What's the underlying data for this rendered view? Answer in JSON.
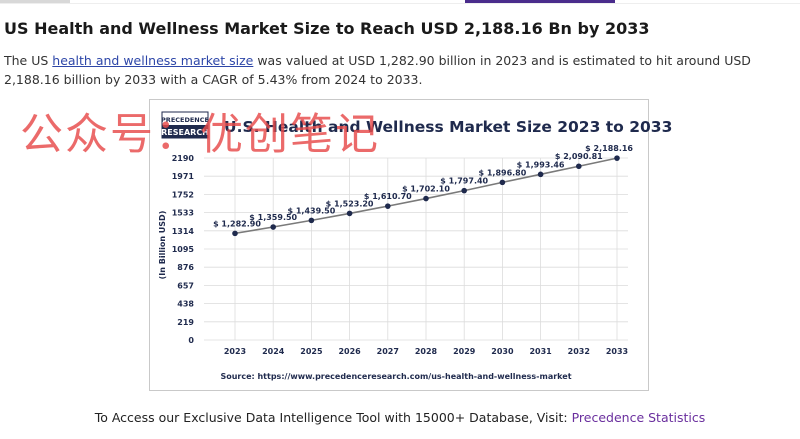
{
  "article": {
    "title": "US Health and Wellness Market Size to Reach USD 2,188.16 Bn by 2033",
    "para_prefix": "The US ",
    "para_link": "health and wellness market size",
    "para_suffix": " was valued at USD 1,282.90 billion in 2023 and is estimated to hit around USD 2,188.16 billion by 2033 with a CAGR of 5.43% from 2024 to 2033."
  },
  "watermark": {
    "text": "公众号：优创笔记"
  },
  "logo": {
    "line1": "PRECEDENCE",
    "line2": "RESEARCH"
  },
  "chart_data": {
    "type": "line",
    "title": "U.S. Health and Wellness Market Size 2023 to 2033",
    "ylabel": "(In Billion USD)",
    "xlabel": "",
    "categories": [
      "2023",
      "2024",
      "2025",
      "2026",
      "2027",
      "2028",
      "2029",
      "2030",
      "2031",
      "2032",
      "2033"
    ],
    "values": [
      1282.9,
      1359.5,
      1439.5,
      1523.2,
      1610.7,
      1702.1,
      1797.4,
      1896.8,
      1993.46,
      2090.81,
      2188.16
    ],
    "labels": [
      "$ 1,282.90",
      "$ 1,359.50",
      "$ 1,439.50",
      "$ 1,523.20",
      "$ 1,610.70",
      "$ 1,702.10",
      "$ 1,797.40",
      "$ 1,896.80",
      "$ 1,993.46",
      "$ 2,090.81",
      "$ 2,188.16"
    ],
    "yticks": [
      0,
      219,
      438,
      657,
      876,
      1095,
      1314,
      1533,
      1752,
      1971,
      2190
    ],
    "ylim": [
      0,
      2190
    ],
    "grid": true,
    "source": "Source: https://www.precedenceresearch.com/us-health-and-wellness-market",
    "colors": {
      "line": "#7a7a7a",
      "point": "#1f2a4d",
      "grid": "#dcdcdc",
      "text": "#1f2a4d"
    }
  },
  "footer": {
    "prefix": "To Access our Exclusive Data Intelligence Tool with 15000+ Database, Visit: ",
    "link": "Precedence Statistics"
  }
}
